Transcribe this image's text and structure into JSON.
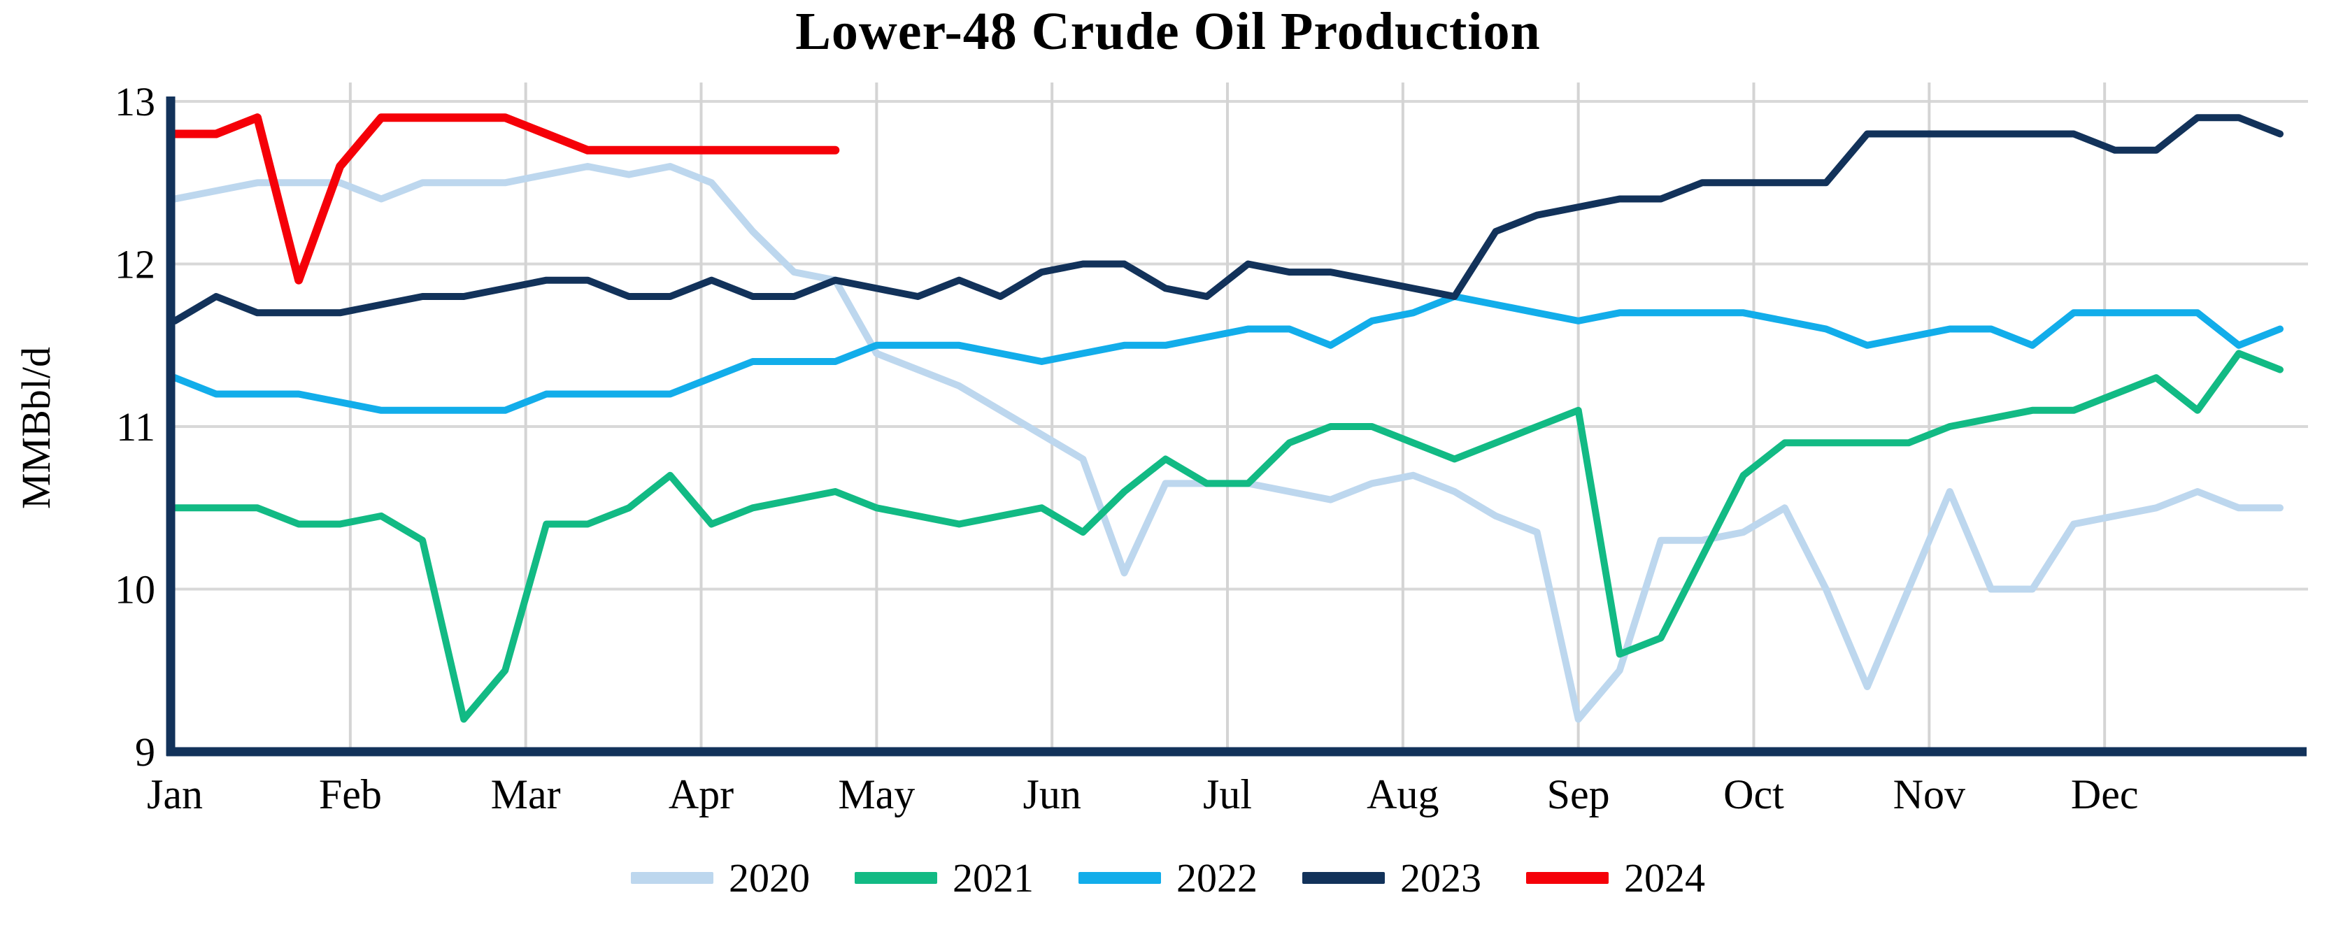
{
  "title": "Lower-48 Crude Oil Production",
  "y_axis": {
    "label": "MMBbl/d",
    "ticks": [
      "13",
      "12",
      "11",
      "10",
      "9"
    ],
    "min": 9,
    "max": 13
  },
  "x_axis": {
    "months": [
      "Jan",
      "Feb",
      "Mar",
      "Apr",
      "May",
      "Jun",
      "Jul",
      "Aug",
      "Sep",
      "Oct",
      "Nov",
      "Dec"
    ]
  },
  "colors": {
    "axis": "#12325A",
    "gridline_h": "#D8D8D8",
    "gridline_v": "#D4D4D4",
    "s2020": "#BDD7EE",
    "s2021": "#12BA84",
    "s2022": "#12ADEA",
    "s2023": "#12325A",
    "s2024": "#F50008"
  },
  "chart_data": {
    "type": "line",
    "title": "Lower-48 Crude Oil Production",
    "xlabel": "",
    "ylabel": "MMBbl/d",
    "ylim": [
      9,
      13
    ],
    "x_unit": "week of year (52 weekly points, Jan-Dec)",
    "grid": true,
    "legend_position": "bottom",
    "month_ticks": [
      "Jan",
      "Feb",
      "Mar",
      "Apr",
      "May",
      "Jun",
      "Jul",
      "Aug",
      "Sep",
      "Oct",
      "Nov",
      "Dec"
    ],
    "series": [
      {
        "name": "2020",
        "color": "#BDD7EE",
        "values": [
          12.4,
          12.45,
          12.5,
          12.5,
          12.5,
          12.4,
          12.5,
          12.5,
          12.5,
          12.55,
          12.6,
          12.55,
          12.6,
          12.5,
          12.2,
          11.95,
          11.9,
          11.45,
          11.35,
          11.25,
          11.1,
          10.95,
          10.8,
          10.1,
          10.65,
          10.65,
          10.65,
          10.6,
          10.55,
          10.65,
          10.7,
          10.6,
          10.45,
          10.35,
          9.2,
          9.5,
          10.3,
          10.3,
          10.35,
          10.5,
          10.0,
          9.4,
          10.0,
          10.6,
          10.0,
          10.0,
          10.4,
          10.45,
          10.5,
          10.6,
          10.5,
          10.5
        ]
      },
      {
        "name": "2021",
        "color": "#12BA84",
        "values": [
          10.5,
          10.5,
          10.5,
          10.4,
          10.4,
          10.45,
          10.3,
          9.2,
          9.5,
          10.4,
          10.4,
          10.5,
          10.7,
          10.4,
          10.5,
          10.55,
          10.6,
          10.5,
          10.45,
          10.4,
          10.45,
          10.5,
          10.35,
          10.6,
          10.8,
          10.65,
          10.65,
          10.9,
          11.0,
          11.0,
          10.9,
          10.8,
          10.9,
          11.0,
          11.1,
          9.6,
          9.7,
          10.2,
          10.7,
          10.9,
          10.9,
          10.9,
          10.9,
          11.0,
          11.05,
          11.1,
          11.1,
          11.2,
          11.3,
          11.1,
          11.45,
          11.35
        ]
      },
      {
        "name": "2022",
        "color": "#12ADEA",
        "values": [
          11.3,
          11.2,
          11.2,
          11.2,
          11.15,
          11.1,
          11.1,
          11.1,
          11.1,
          11.2,
          11.2,
          11.2,
          11.2,
          11.3,
          11.4,
          11.4,
          11.4,
          11.5,
          11.5,
          11.5,
          11.45,
          11.4,
          11.45,
          11.5,
          11.5,
          11.55,
          11.6,
          11.6,
          11.5,
          11.65,
          11.7,
          11.8,
          11.75,
          11.7,
          11.65,
          11.7,
          11.7,
          11.7,
          11.7,
          11.65,
          11.6,
          11.5,
          11.55,
          11.6,
          11.6,
          11.5,
          11.7,
          11.7,
          11.7,
          11.7,
          11.5,
          11.6
        ]
      },
      {
        "name": "2023",
        "color": "#12325A",
        "values": [
          11.65,
          11.8,
          11.7,
          11.7,
          11.7,
          11.75,
          11.8,
          11.8,
          11.85,
          11.9,
          11.9,
          11.8,
          11.8,
          11.9,
          11.8,
          11.8,
          11.9,
          11.85,
          11.8,
          11.9,
          11.8,
          11.95,
          12.0,
          12.0,
          11.85,
          11.8,
          12.0,
          11.95,
          11.95,
          11.9,
          11.85,
          11.8,
          12.2,
          12.3,
          12.35,
          12.4,
          12.4,
          12.5,
          12.5,
          12.5,
          12.5,
          12.8,
          12.8,
          12.8,
          12.8,
          12.8,
          12.8,
          12.7,
          12.7,
          12.9,
          12.9,
          12.8
        ]
      },
      {
        "name": "2024",
        "color": "#F50008",
        "values": [
          12.8,
          12.8,
          12.9,
          11.9,
          12.6,
          12.9,
          12.9,
          12.9,
          12.9,
          12.8,
          12.7,
          12.7,
          12.7,
          12.7,
          12.7,
          12.7,
          12.7
        ]
      }
    ]
  }
}
